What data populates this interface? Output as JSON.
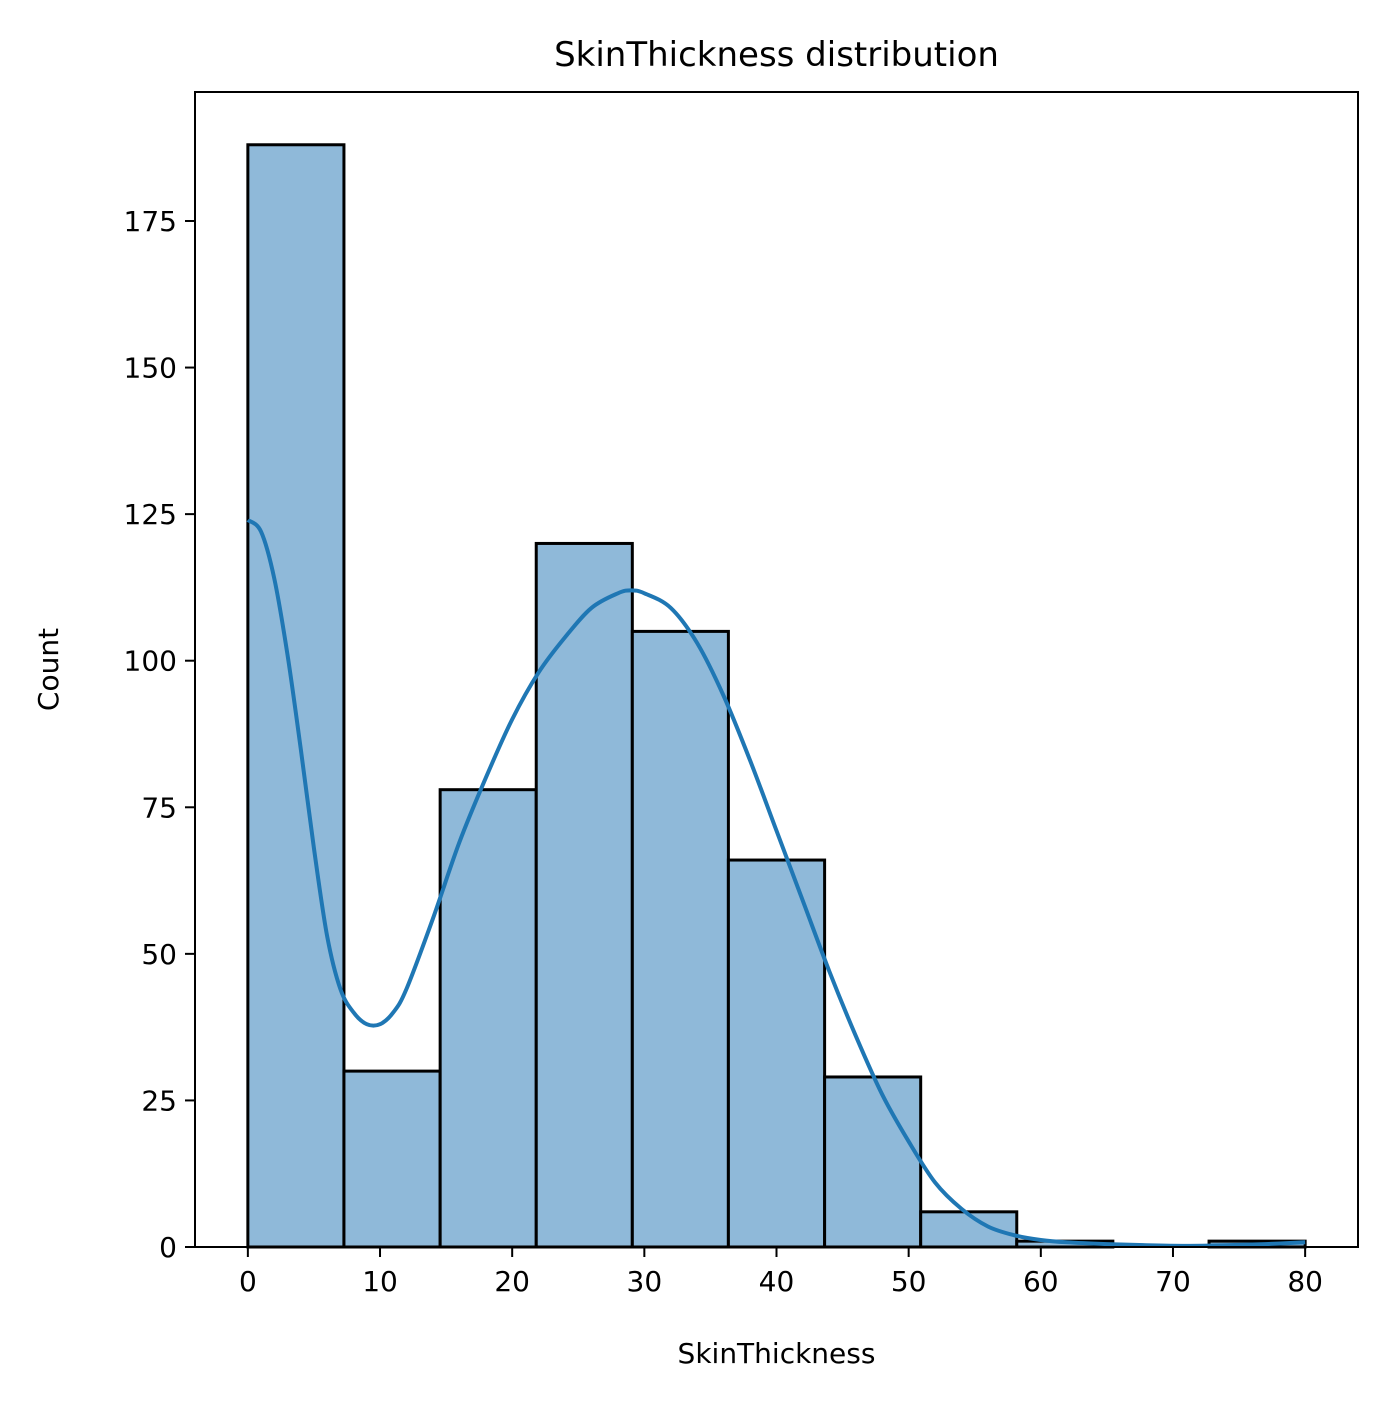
{
  "chart_data": {
    "type": "bar",
    "title": "SkinThickness distribution",
    "xlabel": "SkinThickness",
    "ylabel": "Count",
    "xlim": [
      -4,
      84
    ],
    "ylim": [
      0,
      197
    ],
    "xticks": [
      0,
      10,
      20,
      30,
      40,
      50,
      60,
      70,
      80
    ],
    "yticks": [
      0,
      25,
      50,
      75,
      100,
      125,
      150,
      175
    ],
    "grid": false,
    "legend": "none",
    "bins": {
      "edges": [
        0,
        7.27,
        14.55,
        21.82,
        29.09,
        36.36,
        43.64,
        50.91,
        58.18,
        65.45,
        72.73,
        80
      ],
      "counts": [
        188,
        30,
        78,
        120,
        105,
        66,
        29,
        6,
        1,
        0,
        1
      ]
    },
    "kde": {
      "x": [
        0,
        1,
        2,
        3,
        4,
        5,
        6,
        7,
        8,
        9,
        10,
        11,
        12,
        14,
        16,
        18,
        20,
        22,
        24,
        26,
        28,
        29,
        30,
        32,
        34,
        36,
        38,
        40,
        42,
        44,
        46,
        48,
        50,
        52,
        54,
        56,
        58,
        60,
        62,
        65,
        68,
        71,
        74,
        77,
        80
      ],
      "y": [
        124,
        122,
        114,
        101,
        85,
        68,
        53,
        44,
        40,
        38,
        38,
        40,
        44,
        56,
        69,
        80,
        90,
        98,
        104,
        109,
        111.5,
        112,
        111.5,
        109,
        103,
        94,
        83,
        71,
        59,
        47,
        36,
        26,
        18,
        11,
        6.5,
        3.5,
        2,
        1.2,
        0.8,
        0.5,
        0.3,
        0.2,
        0.3,
        0.5,
        0.8
      ]
    },
    "colors": {
      "bar_fill": "#8fb9d9",
      "bar_edge": "#000000",
      "kde_line": "#1f77b4"
    }
  }
}
